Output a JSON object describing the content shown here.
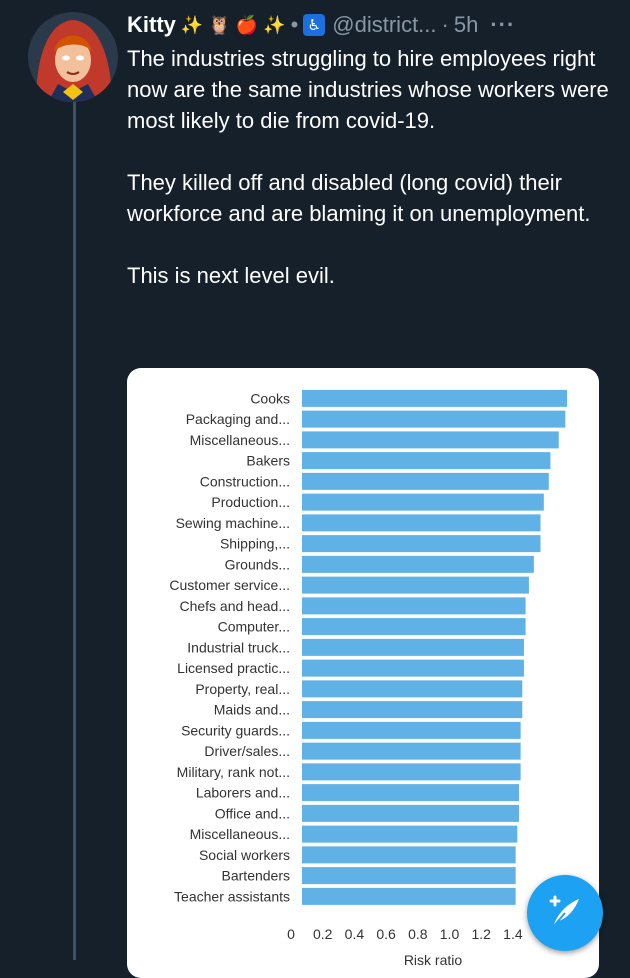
{
  "tweet": {
    "author_name": "Kitty",
    "name_emojis": [
      "✨",
      "🦉",
      "🍎",
      "✨"
    ],
    "wheelchair_symbol": "♿",
    "handle": "@district...",
    "time": "5h",
    "more_label": "···",
    "paragraphs": [
      "The industries struggling to hire employees right now are the same industries whose workers were most likely to die from covid-19.",
      "They killed off and disabled (long covid) their workforce and are blaming it on unemployment.",
      "This is next level evil."
    ]
  },
  "chart_data": {
    "type": "bar",
    "orientation": "horizontal",
    "categories": [
      "Cooks",
      "Packaging and...",
      "Miscellaneous...",
      "Bakers",
      "Construction...",
      "Production...",
      "Sewing machine...",
      "Shipping,...",
      "Grounds...",
      "Customer service...",
      "Chefs and head...",
      "Computer...",
      "Industrial truck...",
      "Licensed practic...",
      "Property, real...",
      "Maids and...",
      "Security guards...",
      "Driver/sales...",
      "Military, rank not...",
      "Laborers and...",
      "Office and...",
      "Miscellaneous...",
      "Social workers",
      "Bartenders",
      "Teacher assistants"
    ],
    "values": [
      1.6,
      1.59,
      1.55,
      1.5,
      1.49,
      1.46,
      1.44,
      1.44,
      1.4,
      1.37,
      1.35,
      1.35,
      1.34,
      1.34,
      1.33,
      1.33,
      1.32,
      1.32,
      1.32,
      1.31,
      1.31,
      1.3,
      1.29,
      1.29,
      1.29
    ],
    "xlabel": "Risk ratio",
    "xticks": [
      "0",
      "0.2",
      "0.4",
      "0.6",
      "0.8",
      "1.0",
      "1.2",
      "1.4"
    ],
    "xlim": [
      0,
      1.6
    ],
    "bar_color": "#5fb1e6"
  },
  "compose_button": {
    "icon": "compose-feather-icon"
  }
}
